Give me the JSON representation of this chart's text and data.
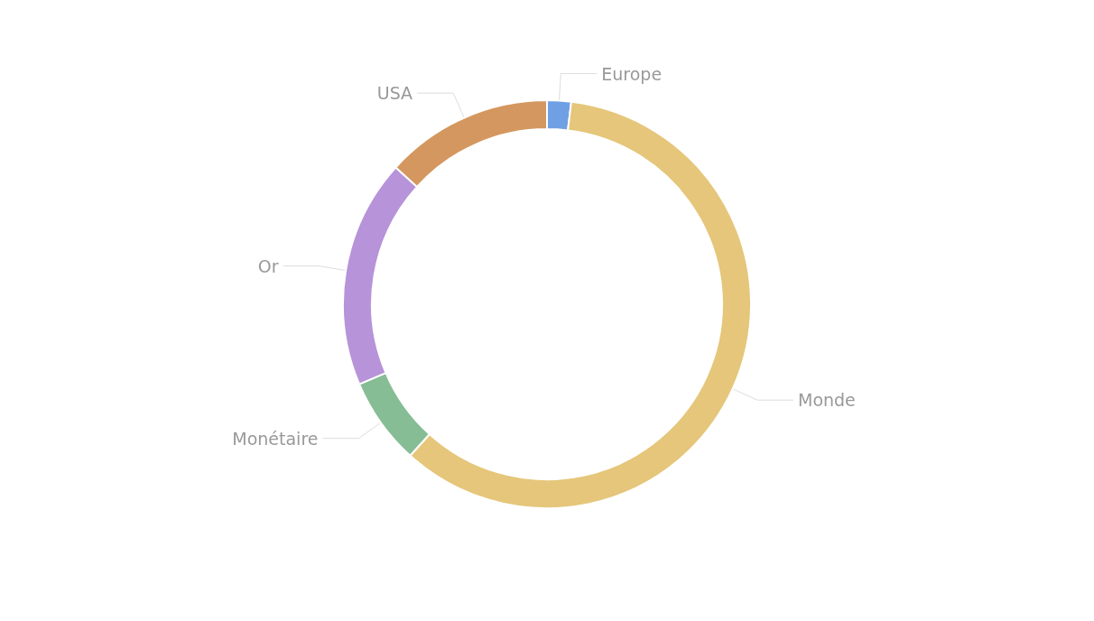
{
  "chart_data": {
    "type": "donut",
    "categories": [
      "Europe",
      "Monde",
      "Monétaire",
      "Or",
      "USA"
    ],
    "values": [
      1.9,
      59.8,
      6.9,
      18.1,
      13.3
    ],
    "colors": [
      "#6fa0e4",
      "#e5c67a",
      "#86bd94",
      "#b793d9",
      "#d4975f"
    ],
    "legend": false
  }
}
